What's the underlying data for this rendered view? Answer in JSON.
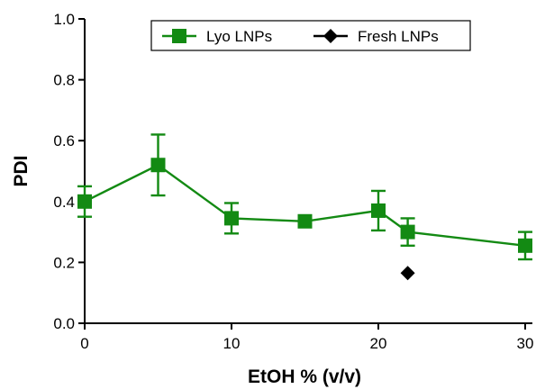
{
  "chart_data": {
    "type": "line",
    "title": "",
    "xlabel": "EtOH % (v/v)",
    "ylabel": "PDI",
    "xlim": [
      0,
      30
    ],
    "ylim": [
      0.0,
      1.0
    ],
    "x_ticks": [
      0,
      10,
      20,
      30
    ],
    "y_ticks": [
      0.0,
      0.2,
      0.4,
      0.6,
      0.8,
      1.0
    ],
    "x_tick_labels": [
      "0",
      "10",
      "20",
      "30"
    ],
    "y_tick_labels": [
      "0.0",
      "0.2",
      "0.4",
      "0.6",
      "0.8",
      "1.0"
    ],
    "grid": false,
    "legend_position": "top-right",
    "series": [
      {
        "name": "Lyo LNPs",
        "marker": "square",
        "color": "#138a13",
        "connected": true,
        "x": [
          0,
          5,
          10,
          15,
          20,
          22,
          30
        ],
        "y": [
          0.4,
          0.52,
          0.345,
          0.335,
          0.37,
          0.3,
          0.255
        ],
        "error": [
          0.05,
          0.1,
          0.05,
          0.015,
          0.065,
          0.045,
          0.045
        ]
      },
      {
        "name": "Fresh LNPs",
        "marker": "diamond",
        "color": "#000000",
        "connected": false,
        "x": [
          22
        ],
        "y": [
          0.165
        ],
        "error": [
          0
        ]
      }
    ]
  }
}
